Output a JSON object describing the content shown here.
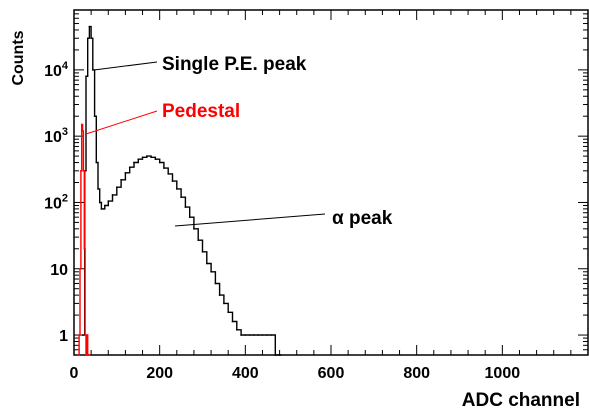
{
  "chart_data": {
    "type": "line",
    "title": "",
    "xlabel": "ADC channel",
    "ylabel": "Counts",
    "xlim": [
      0,
      1200
    ],
    "ylim": [
      0.5,
      80000
    ],
    "y_scale": "log",
    "grid": false,
    "x_ticks": [
      0,
      200,
      400,
      600,
      800,
      1000
    ],
    "x_tick_labels": [
      "0",
      "200",
      "400",
      "600",
      "800",
      "1000"
    ],
    "y_ticks": [
      1,
      10,
      100,
      1000,
      10000
    ],
    "y_tick_labels": [
      {
        "base": "1",
        "exp": ""
      },
      {
        "base": "10",
        "exp": ""
      },
      {
        "base": "10",
        "exp": "2"
      },
      {
        "base": "10",
        "exp": "3"
      },
      {
        "base": "10",
        "exp": "4"
      }
    ],
    "series": [
      {
        "color": "#000000",
        "x": [
          20,
          25,
          28,
          32,
          36,
          40,
          44,
          48,
          52,
          56,
          60,
          64,
          68,
          72,
          80,
          90,
          100,
          110,
          120,
          130,
          140,
          150,
          160,
          170,
          180,
          190,
          200,
          210,
          220,
          230,
          240,
          250,
          260,
          270,
          280,
          290,
          300,
          310,
          320,
          330,
          340,
          350,
          360,
          370,
          380,
          390,
          400,
          410,
          420,
          430,
          440,
          450,
          460,
          470,
          480
        ],
        "y": [
          1,
          300,
          8000,
          30000,
          45000,
          30000,
          10000,
          2000,
          400,
          160,
          100,
          80,
          80,
          90,
          105,
          130,
          170,
          220,
          280,
          340,
          400,
          450,
          480,
          500,
          480,
          450,
          400,
          330,
          270,
          210,
          160,
          120,
          85,
          60,
          40,
          27,
          18,
          12,
          9,
          6,
          4,
          3,
          2.2,
          1.6,
          1.2,
          1,
          1,
          1,
          1,
          1,
          1,
          1,
          1,
          0.5,
          0.5
        ]
      },
      {
        "color": "#ff0000",
        "x": [
          10,
          12,
          14,
          16,
          18,
          20,
          22,
          24,
          26,
          28,
          30,
          32,
          34
        ],
        "y": [
          0.5,
          1,
          10,
          300,
          1500,
          1200,
          300,
          20,
          1,
          0.5,
          1,
          0.5,
          0.5
        ]
      }
    ],
    "annotations": [
      {
        "text": "Single P.E. peak",
        "color": "#000000",
        "x_data": 38,
        "y_data": 20000
      },
      {
        "text": "Pedestal",
        "color": "#ff0000",
        "x_data": 21,
        "y_data": 1200
      },
      {
        "text": "α peak",
        "color": "#000000",
        "x_data": 280,
        "y_data": 40
      }
    ]
  }
}
